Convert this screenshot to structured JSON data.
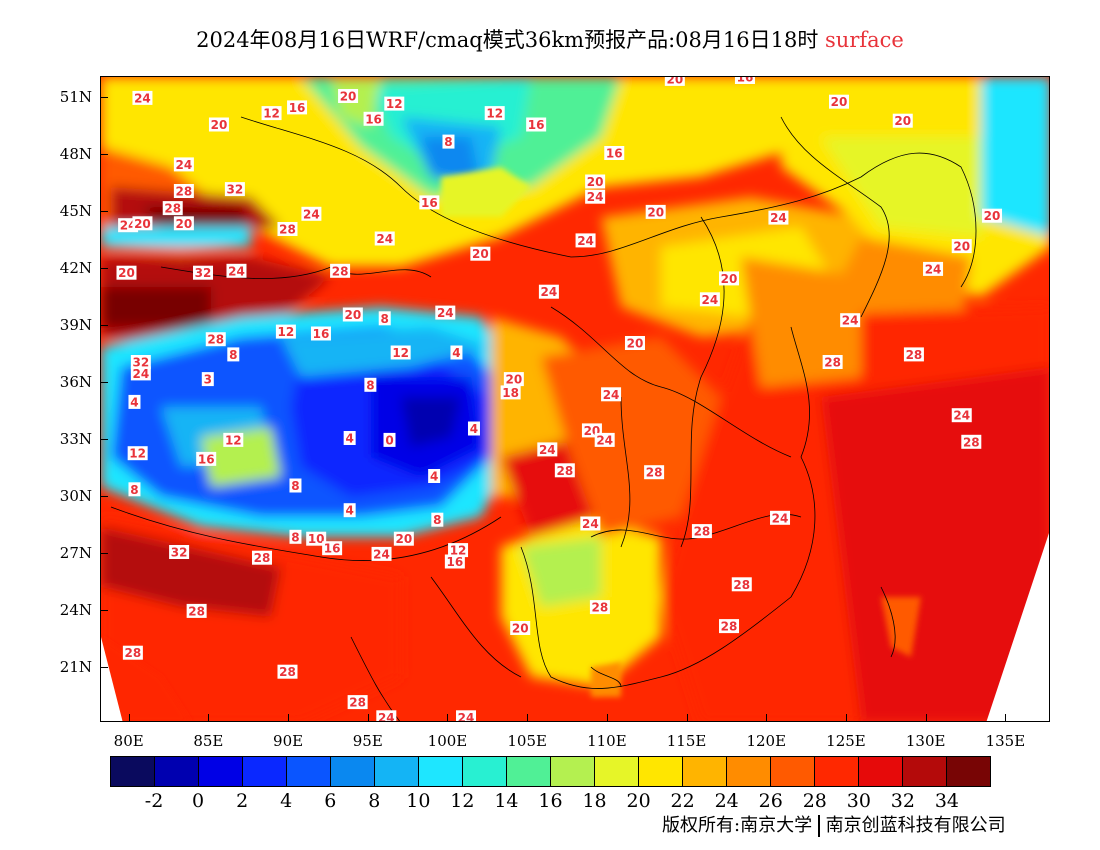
{
  "title": {
    "main": "2024年08月16日WRF/cmaq模式36km预报产品:08月16日18时",
    "level": "surface"
  },
  "map": {
    "lat_labels": [
      "51N",
      "48N",
      "45N",
      "42N",
      "39N",
      "36N",
      "33N",
      "30N",
      "27N",
      "24N",
      "21N"
    ],
    "lat_values": [
      51,
      48,
      45,
      42,
      39,
      36,
      33,
      30,
      27,
      24,
      21
    ],
    "lon_labels": [
      "80E",
      "85E",
      "90E",
      "95E",
      "100E",
      "105E",
      "110E",
      "115E",
      "120E",
      "125E",
      "130E",
      "135E"
    ],
    "lon_values": [
      80,
      85,
      90,
      95,
      100,
      105,
      110,
      115,
      120,
      125,
      130,
      135
    ],
    "lon_range": [
      78.2,
      137.8
    ],
    "lat_range": [
      18.1,
      52.1
    ],
    "contour_labels": [
      {
        "text": "24",
        "lon": 80.8,
        "lat": 51
      },
      {
        "text": "20",
        "lon": 85.6,
        "lat": 49.6
      },
      {
        "text": "12",
        "lon": 88.9,
        "lat": 50.2
      },
      {
        "text": "16",
        "lon": 90.5,
        "lat": 50.5
      },
      {
        "text": "20",
        "lon": 93.7,
        "lat": 51.1
      },
      {
        "text": "16",
        "lon": 95.3,
        "lat": 49.9
      },
      {
        "text": "12",
        "lon": 96.6,
        "lat": 50.7
      },
      {
        "text": "8",
        "lon": 100,
        "lat": 48.7
      },
      {
        "text": "12",
        "lon": 102.9,
        "lat": 50.2
      },
      {
        "text": "16",
        "lon": 105.5,
        "lat": 49.6
      },
      {
        "text": "16",
        "lon": 110.4,
        "lat": 48.1
      },
      {
        "text": "20",
        "lon": 114.2,
        "lat": 52
      },
      {
        "text": "16",
        "lon": 118.6,
        "lat": 52.1
      },
      {
        "text": "20",
        "lon": 124.5,
        "lat": 50.8
      },
      {
        "text": "20",
        "lon": 128.5,
        "lat": 49.8
      },
      {
        "text": "24",
        "lon": 83.4,
        "lat": 47.5
      },
      {
        "text": "28",
        "lon": 83.4,
        "lat": 46.1
      },
      {
        "text": "32",
        "lon": 86.6,
        "lat": 46.2
      },
      {
        "text": "28",
        "lon": 82.7,
        "lat": 45.2
      },
      {
        "text": "24",
        "lon": 79.9,
        "lat": 44.3
      },
      {
        "text": "20",
        "lon": 80.8,
        "lat": 44.4
      },
      {
        "text": "20",
        "lon": 83.4,
        "lat": 44.4
      },
      {
        "text": "24",
        "lon": 91.4,
        "lat": 44.9
      },
      {
        "text": "28",
        "lon": 89.9,
        "lat": 44.1
      },
      {
        "text": "16",
        "lon": 98.8,
        "lat": 45.5
      },
      {
        "text": "20",
        "lon": 109.2,
        "lat": 46.6
      },
      {
        "text": "24",
        "lon": 109.2,
        "lat": 45.8
      },
      {
        "text": "20",
        "lon": 113,
        "lat": 45
      },
      {
        "text": "24",
        "lon": 120.7,
        "lat": 44.7
      },
      {
        "text": "20",
        "lon": 134.1,
        "lat": 44.8
      },
      {
        "text": "20",
        "lon": 132.2,
        "lat": 43.2
      },
      {
        "text": "20",
        "lon": 79.8,
        "lat": 41.8
      },
      {
        "text": "32",
        "lon": 84.6,
        "lat": 41.8
      },
      {
        "text": "24",
        "lon": 86.7,
        "lat": 41.9
      },
      {
        "text": "28",
        "lon": 93.2,
        "lat": 41.9
      },
      {
        "text": "24",
        "lon": 96,
        "lat": 43.6
      },
      {
        "text": "20",
        "lon": 102,
        "lat": 42.8
      },
      {
        "text": "24",
        "lon": 108.6,
        "lat": 43.5
      },
      {
        "text": "20",
        "lon": 117.6,
        "lat": 41.5
      },
      {
        "text": "24",
        "lon": 130.4,
        "lat": 42
      },
      {
        "text": "24",
        "lon": 106.3,
        "lat": 40.8
      },
      {
        "text": "24",
        "lon": 116.4,
        "lat": 40.4
      },
      {
        "text": "24",
        "lon": 99.8,
        "lat": 39.7
      },
      {
        "text": "20",
        "lon": 94,
        "lat": 39.6
      },
      {
        "text": "8",
        "lon": 96,
        "lat": 39.4
      },
      {
        "text": "12",
        "lon": 89.8,
        "lat": 38.7
      },
      {
        "text": "16",
        "lon": 92,
        "lat": 38.6
      },
      {
        "text": "24",
        "lon": 125.2,
        "lat": 39.3
      },
      {
        "text": "28",
        "lon": 85.4,
        "lat": 38.3
      },
      {
        "text": "20",
        "lon": 111.7,
        "lat": 38.1
      },
      {
        "text": "12",
        "lon": 97,
        "lat": 37.6
      },
      {
        "text": "4",
        "lon": 100.5,
        "lat": 37.6
      },
      {
        "text": "8",
        "lon": 86.5,
        "lat": 37.5
      },
      {
        "text": "28",
        "lon": 129.2,
        "lat": 37.5
      },
      {
        "text": "32",
        "lon": 80.7,
        "lat": 37.1
      },
      {
        "text": "24",
        "lon": 80.7,
        "lat": 36.5
      },
      {
        "text": "28",
        "lon": 124.1,
        "lat": 37.1
      },
      {
        "text": "3",
        "lon": 84.9,
        "lat": 36.2
      },
      {
        "text": "8",
        "lon": 95.1,
        "lat": 35.9
      },
      {
        "text": "20",
        "lon": 104.1,
        "lat": 36.2
      },
      {
        "text": "18",
        "lon": 103.9,
        "lat": 35.5
      },
      {
        "text": "24",
        "lon": 110.2,
        "lat": 35.4
      },
      {
        "text": "4",
        "lon": 80.3,
        "lat": 35
      },
      {
        "text": "24",
        "lon": 132.2,
        "lat": 34.3
      },
      {
        "text": "4",
        "lon": 101.6,
        "lat": 33.6
      },
      {
        "text": "4",
        "lon": 93.8,
        "lat": 33.1
      },
      {
        "text": "0",
        "lon": 96.3,
        "lat": 33
      },
      {
        "text": "12",
        "lon": 86.5,
        "lat": 33
      },
      {
        "text": "20",
        "lon": 109,
        "lat": 33.5
      },
      {
        "text": "24",
        "lon": 109.8,
        "lat": 33
      },
      {
        "text": "28",
        "lon": 132.8,
        "lat": 32.9
      },
      {
        "text": "24",
        "lon": 106.2,
        "lat": 32.5
      },
      {
        "text": "12",
        "lon": 80.5,
        "lat": 32.3
      },
      {
        "text": "16",
        "lon": 84.8,
        "lat": 32
      },
      {
        "text": "28",
        "lon": 107.3,
        "lat": 31.4
      },
      {
        "text": "28",
        "lon": 112.9,
        "lat": 31.3
      },
      {
        "text": "4",
        "lon": 99.1,
        "lat": 31.1
      },
      {
        "text": "8",
        "lon": 80.3,
        "lat": 30.4
      },
      {
        "text": "8",
        "lon": 90.4,
        "lat": 30.6
      },
      {
        "text": "4",
        "lon": 93.8,
        "lat": 29.3
      },
      {
        "text": "24",
        "lon": 120.8,
        "lat": 28.9
      },
      {
        "text": "8",
        "lon": 99.3,
        "lat": 28.8
      },
      {
        "text": "24",
        "lon": 108.9,
        "lat": 28.6
      },
      {
        "text": "28",
        "lon": 115.9,
        "lat": 28.2
      },
      {
        "text": "8",
        "lon": 90.4,
        "lat": 27.9
      },
      {
        "text": "10",
        "lon": 91.7,
        "lat": 27.8
      },
      {
        "text": "16",
        "lon": 92.7,
        "lat": 27.3
      },
      {
        "text": "20",
        "lon": 97.2,
        "lat": 27.8
      },
      {
        "text": "12",
        "lon": 100.6,
        "lat": 27.2
      },
      {
        "text": "24",
        "lon": 95.8,
        "lat": 27
      },
      {
        "text": "32",
        "lon": 83.1,
        "lat": 27.1
      },
      {
        "text": "28",
        "lon": 88.3,
        "lat": 26.8
      },
      {
        "text": "16",
        "lon": 100.4,
        "lat": 26.6
      },
      {
        "text": "28",
        "lon": 118.4,
        "lat": 25.4
      },
      {
        "text": "28",
        "lon": 84.2,
        "lat": 24
      },
      {
        "text": "28",
        "lon": 109.5,
        "lat": 24.2
      },
      {
        "text": "20",
        "lon": 104.5,
        "lat": 23.1
      },
      {
        "text": "28",
        "lon": 117.6,
        "lat": 23.2
      },
      {
        "text": "28",
        "lon": 80.2,
        "lat": 21.8
      },
      {
        "text": "28",
        "lon": 89.9,
        "lat": 20.8
      },
      {
        "text": "28",
        "lon": 94.3,
        "lat": 19.2
      },
      {
        "text": "24",
        "lon": 96.1,
        "lat": 18.4
      },
      {
        "text": "24",
        "lon": 101.1,
        "lat": 18.4
      }
    ]
  },
  "colorbar": {
    "colors": [
      "#0a0a5e",
      "#0000b0",
      "#0000e6",
      "#0a28ff",
      "#0a55ff",
      "#0a88f0",
      "#14b4f5",
      "#1ee6ff",
      "#28f0d2",
      "#50f096",
      "#b4f050",
      "#e6f528",
      "#ffe600",
      "#ffb400",
      "#ff8c00",
      "#ff5a00",
      "#ff2800",
      "#e60a0a",
      "#b40a0a",
      "#780505"
    ],
    "labels": [
      "-2",
      "0",
      "2",
      "4",
      "6",
      "8",
      "10",
      "12",
      "14",
      "16",
      "18",
      "20",
      "22",
      "24",
      "26",
      "28",
      "30",
      "32",
      "34"
    ]
  },
  "copyright": {
    "left": "版权所有:南京大学",
    "right": "南京创蓝科技有限公司"
  }
}
